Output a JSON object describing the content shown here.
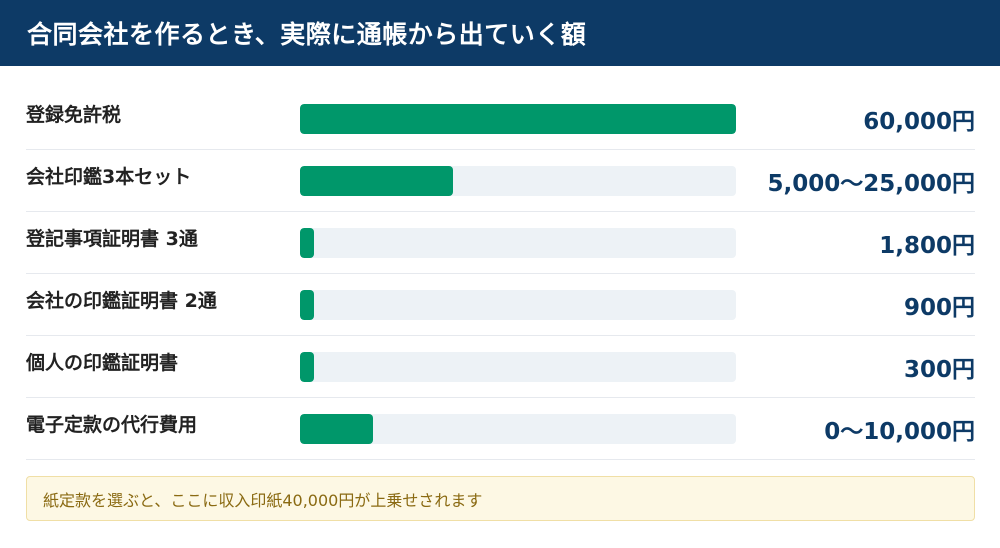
{
  "header": {
    "title": "合同会社を作るとき、実際に通帳から出ていく額"
  },
  "colors": {
    "header_bg": "#0d3a66",
    "bar": "#00976a",
    "track": "#edf2f6",
    "value_text": "#0d3a66",
    "note_bg": "#fdf8e4",
    "note_text": "#8a6a12"
  },
  "chart_data": {
    "type": "bar",
    "orientation": "horizontal",
    "xlim": [
      0,
      60000
    ],
    "categories": [
      "登録免許税",
      "会社印鑑3本セット",
      "登記事項証明書 3通",
      "会社の印鑑証明書 2通",
      "個人の印鑑証明書",
      "電子定款の代行費用"
    ],
    "values": [
      60000,
      21000,
      1800,
      900,
      300,
      10000
    ],
    "value_labels": [
      "60,000円",
      "5,000〜25,000円",
      "1,800円",
      "900円",
      "300円",
      "0〜10,000円"
    ]
  },
  "note": {
    "text": "紙定款を選ぶと、ここに収入印紙40,000円が上乗せされます"
  }
}
